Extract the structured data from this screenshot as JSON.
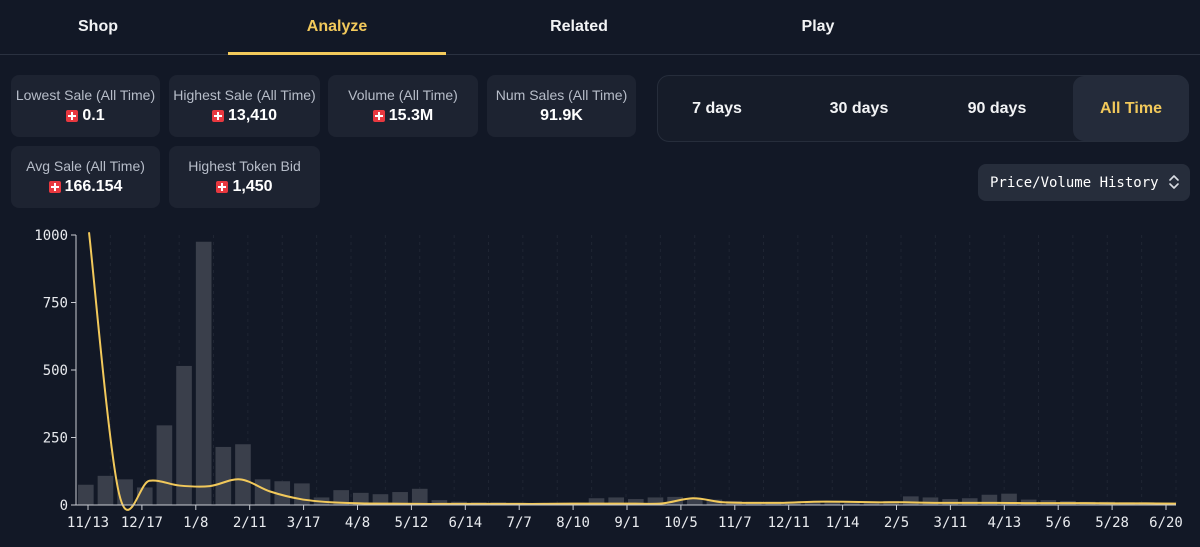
{
  "tabs": [
    {
      "label": "Shop",
      "active": false
    },
    {
      "label": "Analyze",
      "active": true
    },
    {
      "label": "Related",
      "active": false
    },
    {
      "label": "Play",
      "active": false
    }
  ],
  "stats": [
    {
      "label": "Lowest Sale (All Time)",
      "value": "0.1",
      "coin": true
    },
    {
      "label": "Highest Sale (All Time)",
      "value": "13,410",
      "coin": true
    },
    {
      "label": "Volume (All Time)",
      "value": "15.3M",
      "coin": true
    },
    {
      "label": "Num Sales (All Time)",
      "value": "91.9K",
      "coin": false
    },
    {
      "label": "Avg Sale (All Time)",
      "value": "166.154",
      "coin": true
    },
    {
      "label": "Highest Token Bid",
      "value": "1,450",
      "coin": true
    }
  ],
  "ranges": [
    {
      "label": "7 days",
      "active": false
    },
    {
      "label": "30 days",
      "active": false
    },
    {
      "label": "90 days",
      "active": false
    },
    {
      "label": "All Time",
      "active": true
    }
  ],
  "dropdown": {
    "label": "Price/Volume History"
  },
  "colors": {
    "accent": "#f2c95b",
    "background": "#121826",
    "card": "#1d2331",
    "bar": "#3a3f4b",
    "coin": "#e8383f"
  },
  "chart_data": {
    "type": "bar",
    "ylim": [
      0,
      1000
    ],
    "yticks": [
      0,
      250,
      500,
      750,
      1000
    ],
    "xticks": [
      "11/13",
      "12/17",
      "1/8",
      "2/11",
      "3/17",
      "4/8",
      "5/12",
      "6/14",
      "7/7",
      "8/10",
      "9/1",
      "10/5",
      "11/7",
      "12/11",
      "1/14",
      "2/5",
      "3/11",
      "4/13",
      "5/6",
      "5/28",
      "6/20"
    ],
    "bar_values": [
      75,
      108,
      95,
      65,
      295,
      515,
      975,
      215,
      225,
      95,
      88,
      80,
      28,
      55,
      45,
      40,
      48,
      60,
      18,
      12,
      10,
      10,
      8,
      8,
      8,
      8,
      25,
      28,
      22,
      28,
      30,
      25,
      20,
      15,
      12,
      12,
      12,
      10,
      10,
      8,
      8,
      15,
      32,
      28,
      22,
      25,
      38,
      42,
      20,
      18,
      15,
      12,
      12,
      10,
      10,
      8
    ],
    "line_values": [
      1010,
      40,
      90,
      72,
      70,
      95,
      50,
      22,
      10,
      6,
      5,
      4,
      4,
      4,
      4,
      4,
      5,
      5,
      5,
      6,
      25,
      10,
      8,
      8,
      12,
      12,
      10,
      10,
      8,
      8,
      8,
      7,
      7,
      7,
      6,
      6,
      5
    ]
  }
}
